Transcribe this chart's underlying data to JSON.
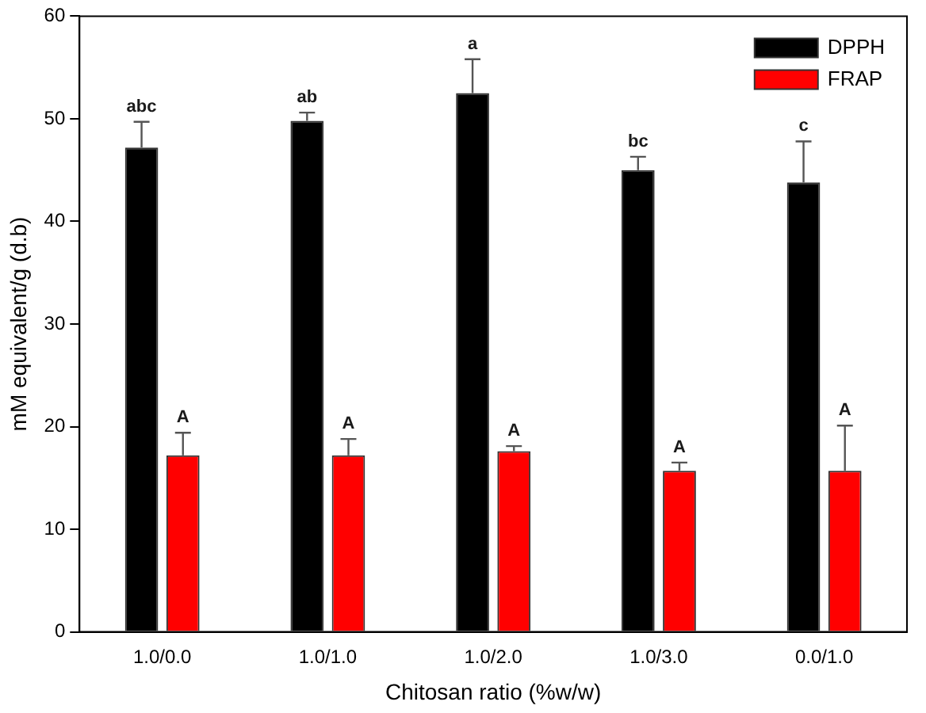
{
  "chart_data": {
    "type": "bar",
    "xlabel": "Chitosan ratio (%w/w)",
    "ylabel": "mM equivalent/g (d.b)",
    "categories": [
      "1.0/0.0",
      "1.0/1.0",
      "1.0/2.0",
      "1.0/3.0",
      "0.0/1.0"
    ],
    "series": [
      {
        "name": "DPPH",
        "color": "#000000",
        "values": [
          47.2,
          49.8,
          52.5,
          45.0,
          43.8
        ],
        "errors": [
          [
            47.2,
            49.7
          ],
          [
            49.8,
            50.6
          ],
          [
            52.5,
            55.8
          ],
          [
            45.0,
            46.3
          ],
          [
            43.8,
            47.8
          ]
        ]
      },
      {
        "name": "FRAP",
        "color": "#ff0000",
        "values": [
          17.2,
          17.2,
          17.6,
          15.7,
          15.7
        ],
        "errors": [
          [
            17.2,
            19.4
          ],
          [
            17.2,
            18.8
          ],
          [
            17.6,
            18.1
          ],
          [
            15.7,
            16.5
          ],
          [
            15.7,
            20.1
          ]
        ]
      }
    ],
    "ylim": [
      0,
      60
    ],
    "yticks": [
      0,
      10,
      20,
      30,
      40,
      50,
      60
    ],
    "grid": false,
    "legend": "top right",
    "annotations": [
      "abc",
      "ab",
      "a",
      "bc",
      "c",
      "A",
      "A",
      "A",
      "A",
      "A"
    ]
  }
}
